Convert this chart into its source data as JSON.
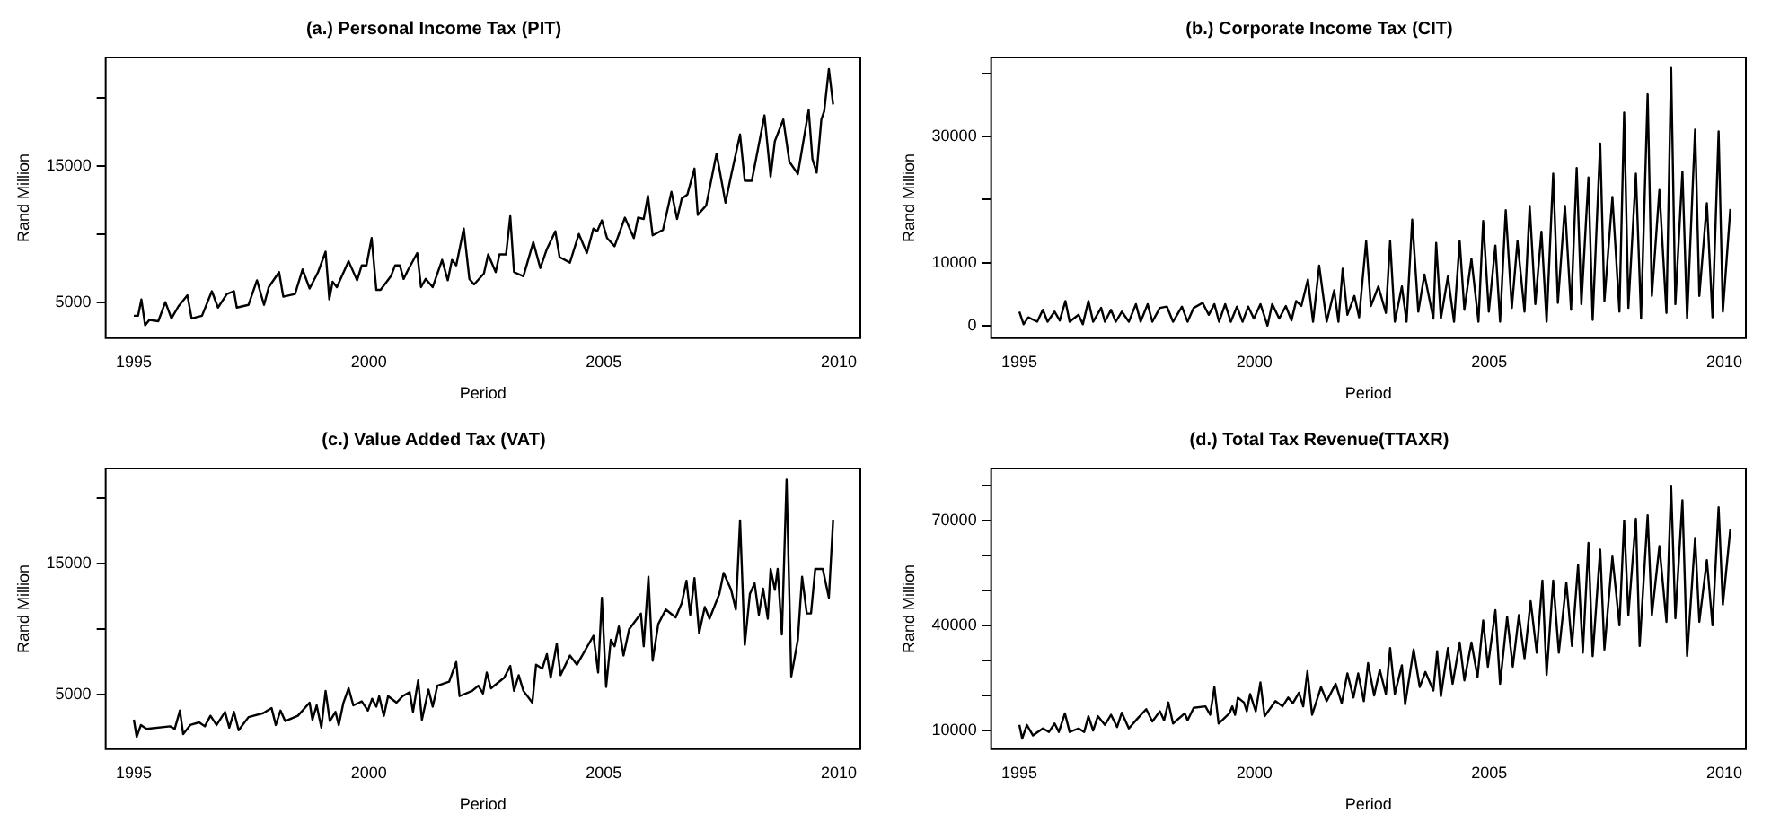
{
  "chart_data": [
    {
      "type": "line",
      "title": "(a.) Personal Income Tax (PIT)",
      "xlabel": "Period",
      "ylabel": "Rand Million",
      "color": "#000000",
      "marker": "none",
      "xlim": [
        1994.4,
        2010.46
      ],
      "xticks": [
        1995,
        2000,
        2005,
        2010
      ],
      "ylim": [
        2360,
        22950
      ],
      "yticks": [
        5000,
        {
          "value": 10000,
          "label": null
        },
        15000,
        {
          "value": 20000,
          "label": null
        }
      ],
      "x": [
        1995.0,
        1995.09,
        1995.16,
        1995.24,
        1995.33,
        1995.52,
        1995.67,
        1995.8,
        1995.95,
        1996.14,
        1996.23,
        1996.45,
        1996.66,
        1996.79,
        1996.98,
        1997.13,
        1997.19,
        1997.44,
        1997.62,
        1997.77,
        1997.87,
        1998.09,
        1998.18,
        1998.43,
        1998.59,
        1998.74,
        1998.92,
        1999.08,
        1999.16,
        1999.23,
        1999.32,
        1999.57,
        1999.75,
        1999.85,
        1999.95,
        2000.06,
        2000.16,
        2000.25,
        2000.47,
        2000.56,
        2000.66,
        2000.74,
        2000.84,
        2001.03,
        2001.11,
        2001.21,
        2001.36,
        2001.56,
        2001.68,
        2001.77,
        2001.86,
        2002.02,
        2002.14,
        2002.24,
        2002.45,
        2002.54,
        2002.7,
        2002.78,
        2002.92,
        2003.01,
        2003.09,
        2003.29,
        2003.5,
        2003.65,
        2003.79,
        2003.97,
        2004.06,
        2004.28,
        2004.47,
        2004.64,
        2004.78,
        2004.86,
        2004.96,
        2005.07,
        2005.23,
        2005.45,
        2005.64,
        2005.73,
        2005.85,
        2005.94,
        2006.04,
        2006.26,
        2006.44,
        2006.56,
        2006.66,
        2006.78,
        2006.93,
        2007.0,
        2007.18,
        2007.4,
        2007.59,
        2007.71,
        2007.9,
        2008.0,
        2008.15,
        2008.42,
        2008.55,
        2008.64,
        2008.82,
        2008.95,
        2009.13,
        2009.36,
        2009.44,
        2009.53,
        2009.63,
        2009.69,
        2009.79,
        2009.88
      ],
      "values": [
        4000,
        4000,
        5200,
        3300,
        3700,
        3600,
        5000,
        3800,
        4700,
        5500,
        3800,
        4000,
        5800,
        4600,
        5600,
        5800,
        4600,
        4800,
        6600,
        4800,
        6100,
        7200,
        5400,
        5600,
        7400,
        6000,
        7200,
        8700,
        5200,
        6500,
        6100,
        8000,
        6600,
        7700,
        7700,
        9700,
        5900,
        5900,
        6900,
        7700,
        7700,
        6700,
        7400,
        8600,
        6100,
        6700,
        6100,
        8100,
        6600,
        8100,
        7700,
        10400,
        6700,
        6300,
        7100,
        8500,
        7200,
        8500,
        8500,
        11300,
        7200,
        6900,
        9400,
        7500,
        8900,
        10200,
        8300,
        7900,
        10000,
        8600,
        10400,
        10200,
        11000,
        9700,
        9100,
        11200,
        9700,
        11200,
        11100,
        12800,
        9900,
        10300,
        13100,
        11100,
        12600,
        12900,
        14800,
        11400,
        12100,
        15900,
        12300,
        14300,
        17300,
        13900,
        13900,
        18700,
        14200,
        16800,
        18400,
        15300,
        14400,
        19100,
        15500,
        14500,
        18400,
        19000,
        22100,
        19500
      ]
    },
    {
      "type": "line",
      "title": "(b.) Corporate Income Tax (CIT)",
      "xlabel": "Period",
      "ylabel": "Rand Million",
      "color": "#000000",
      "marker": "none",
      "xlim": [
        1994.4,
        2010.46
      ],
      "xticks": [
        1995,
        2000,
        2005,
        2010
      ],
      "ylim": [
        -2000,
        42550
      ],
      "yticks": [
        0,
        10000,
        {
          "value": 20000,
          "label": null
        },
        30000,
        {
          "value": 40000,
          "label": null
        }
      ],
      "x": [
        1995.0,
        1995.09,
        1995.19,
        1995.38,
        1995.5,
        1995.6,
        1995.75,
        1995.86,
        1995.98,
        1996.07,
        1996.26,
        1996.35,
        1996.47,
        1996.57,
        1996.74,
        1996.82,
        1996.95,
        1997.05,
        1997.18,
        1997.33,
        1997.48,
        1997.58,
        1997.73,
        1997.83,
        1997.99,
        1998.14,
        1998.27,
        1998.46,
        1998.58,
        1998.71,
        1998.9,
        1999.03,
        1999.15,
        1999.25,
        1999.38,
        1999.5,
        1999.63,
        1999.75,
        1999.87,
        1999.99,
        2000.13,
        2000.28,
        2000.38,
        2000.53,
        2000.67,
        2000.79,
        2000.89,
        2001.0,
        2001.14,
        2001.25,
        2001.38,
        2001.54,
        2001.7,
        2001.79,
        2001.88,
        2001.98,
        2002.13,
        2002.23,
        2002.38,
        2002.48,
        2002.64,
        2002.8,
        2002.89,
        2002.99,
        2003.14,
        2003.24,
        2003.36,
        2003.49,
        2003.62,
        2003.81,
        2003.87,
        2003.97,
        2004.12,
        2004.25,
        2004.37,
        2004.47,
        2004.62,
        2004.77,
        2004.87,
        2004.99,
        2005.13,
        2005.23,
        2005.35,
        2005.48,
        2005.6,
        2005.75,
        2005.86,
        2005.98,
        2006.11,
        2006.22,
        2006.36,
        2006.46,
        2006.61,
        2006.74,
        2006.86,
        2006.96,
        2007.11,
        2007.2,
        2007.36,
        2007.45,
        2007.62,
        2007.77,
        2007.87,
        2007.96,
        2008.12,
        2008.23,
        2008.37,
        2008.46,
        2008.62,
        2008.77,
        2008.87,
        2008.96,
        2009.11,
        2009.21,
        2009.38,
        2009.47,
        2009.63,
        2009.75,
        2009.88,
        2009.97,
        2010.13
      ],
      "values": [
        2200,
        200,
        1300,
        600,
        2500,
        600,
        2200,
        800,
        3900,
        600,
        1700,
        200,
        3900,
        600,
        2800,
        600,
        2500,
        600,
        2200,
        600,
        3400,
        600,
        3400,
        600,
        2800,
        3000,
        600,
        3000,
        600,
        2800,
        3600,
        1700,
        3400,
        600,
        3400,
        600,
        3000,
        600,
        3000,
        1100,
        3400,
        0,
        3400,
        1100,
        3100,
        800,
        3900,
        3100,
        7300,
        600,
        9500,
        600,
        5600,
        600,
        9000,
        1700,
        4700,
        1300,
        13400,
        3100,
        6200,
        2000,
        13400,
        600,
        6200,
        600,
        16800,
        2200,
        8100,
        1100,
        13100,
        1100,
        7800,
        600,
        13400,
        2500,
        10600,
        600,
        16600,
        2200,
        12700,
        600,
        18300,
        2800,
        13400,
        2200,
        19000,
        3400,
        14900,
        600,
        24100,
        3600,
        19000,
        2500,
        25000,
        3400,
        23500,
        900,
        28900,
        3900,
        20400,
        2200,
        33800,
        2800,
        24100,
        1100,
        36700,
        4700,
        21500,
        2000,
        40900,
        3400,
        24400,
        1100,
        31100,
        4700,
        19400,
        1300,
        30800,
        2200,
        18500
      ]
    },
    {
      "type": "line",
      "title": "(c.) Value Added Tax (VAT)",
      "xlabel": "Period",
      "ylabel": "Rand Million",
      "color": "#000000",
      "marker": "none",
      "xlim": [
        1994.4,
        2010.46
      ],
      "xticks": [
        1995,
        2000,
        2005,
        2010
      ],
      "ylim": [
        860,
        22260
      ],
      "yticks": [
        5000,
        {
          "value": 10000,
          "label": null
        },
        15000,
        {
          "value": 20000,
          "label": null
        }
      ],
      "x": [
        1995.0,
        1995.06,
        1995.15,
        1995.27,
        1995.77,
        1995.87,
        1995.98,
        1996.05,
        1996.2,
        1996.39,
        1996.51,
        1996.63,
        1996.76,
        1996.94,
        1997.03,
        1997.13,
        1997.23,
        1997.44,
        1997.75,
        1997.93,
        1998.02,
        1998.12,
        1998.22,
        1998.49,
        1998.74,
        1998.8,
        1998.89,
        1998.99,
        1999.08,
        1999.17,
        1999.29,
        1999.36,
        1999.46,
        1999.57,
        1999.67,
        1999.85,
        1999.98,
        2000.07,
        2000.16,
        2000.22,
        2000.32,
        2000.41,
        2000.59,
        2000.72,
        2000.87,
        2000.94,
        2001.05,
        2001.13,
        2001.27,
        2001.36,
        2001.46,
        2001.71,
        2001.86,
        2001.93,
        2002.2,
        2002.33,
        2002.43,
        2002.51,
        2002.6,
        2002.88,
        2003.01,
        2003.09,
        2003.19,
        2003.29,
        2003.48,
        2003.56,
        2003.69,
        2003.79,
        2003.87,
        2004.0,
        2004.08,
        2004.28,
        2004.43,
        2004.78,
        2004.88,
        2004.96,
        2005.05,
        2005.15,
        2005.23,
        2005.32,
        2005.42,
        2005.54,
        2005.79,
        2005.85,
        2005.95,
        2006.04,
        2006.16,
        2006.32,
        2006.53,
        2006.66,
        2006.76,
        2006.84,
        2006.93,
        2007.03,
        2007.15,
        2007.25,
        2007.46,
        2007.55,
        2007.71,
        2007.81,
        2007.9,
        2008.0,
        2008.11,
        2008.21,
        2008.3,
        2008.39,
        2008.49,
        2008.55,
        2008.64,
        2008.7,
        2008.79,
        2008.89,
        2008.99,
        2009.13,
        2009.22,
        2009.32,
        2009.41,
        2009.5,
        2009.66,
        2009.79,
        2009.88
      ],
      "values": [
        3100,
        1800,
        2700,
        2400,
        2600,
        2400,
        3800,
        2000,
        2700,
        2900,
        2600,
        3400,
        2700,
        3700,
        2500,
        3700,
        2300,
        3300,
        3600,
        4000,
        2700,
        3800,
        3000,
        3400,
        4400,
        3100,
        4200,
        2500,
        5300,
        3000,
        3700,
        2700,
        4400,
        5500,
        4200,
        4500,
        3800,
        4700,
        4100,
        4900,
        3400,
        4900,
        4400,
        4900,
        5200,
        3700,
        6100,
        3100,
        5400,
        4100,
        5700,
        6000,
        7500,
        4900,
        5300,
        5700,
        5100,
        6700,
        5500,
        6300,
        7200,
        5300,
        6500,
        5300,
        4400,
        7300,
        7000,
        8100,
        6300,
        8900,
        6500,
        8000,
        7300,
        9500,
        6700,
        12400,
        5600,
        9200,
        8700,
        10200,
        8000,
        10000,
        11200,
        8700,
        14000,
        7600,
        10400,
        11500,
        10900,
        12000,
        13700,
        11100,
        13900,
        9700,
        11700,
        10800,
        12700,
        14300,
        13000,
        11500,
        18300,
        8800,
        12700,
        13500,
        11100,
        13100,
        10800,
        14600,
        13000,
        14600,
        9600,
        21400,
        6400,
        9200,
        14000,
        11200,
        11200,
        14600,
        14600,
        12400,
        18300
      ]
    },
    {
      "type": "line",
      "title": "(d.) Total Tax Revenue(TTAXR)",
      "xlabel": "Period",
      "ylabel": "Rand Million",
      "color": "#000000",
      "marker": "none",
      "xlim": [
        1994.4,
        2010.46
      ],
      "xticks": [
        1995,
        2000,
        2005,
        2010
      ],
      "ylim": [
        4700,
        84750
      ],
      "yticks": [
        10000,
        {
          "value": 20000,
          "label": null
        },
        {
          "value": 30000,
          "label": null
        },
        40000,
        {
          "value": 50000,
          "label": null
        },
        {
          "value": 60000,
          "label": null
        },
        70000,
        {
          "value": 80000,
          "label": null
        }
      ],
      "x": [
        1995.0,
        1995.06,
        1995.16,
        1995.29,
        1995.5,
        1995.63,
        1995.75,
        1995.84,
        1995.97,
        1996.07,
        1996.26,
        1996.38,
        1996.47,
        1996.57,
        1996.67,
        1996.82,
        1996.95,
        1997.08,
        1997.18,
        1997.33,
        1997.52,
        1997.7,
        1997.83,
        1997.99,
        1998.08,
        1998.17,
        1998.27,
        1998.52,
        1998.58,
        1998.71,
        1998.96,
        1999.06,
        1999.15,
        1999.24,
        1999.47,
        1999.53,
        1999.59,
        1999.65,
        1999.78,
        1999.84,
        1999.91,
        2000.03,
        2000.13,
        2000.22,
        2000.45,
        2000.6,
        2000.72,
        2000.82,
        2000.95,
        2001.04,
        2001.13,
        2001.23,
        2001.42,
        2001.54,
        2001.73,
        2001.86,
        2001.98,
        2002.11,
        2002.21,
        2002.33,
        2002.42,
        2002.55,
        2002.67,
        2002.8,
        2002.89,
        2002.99,
        2003.14,
        2003.21,
        2003.39,
        2003.52,
        2003.64,
        2003.81,
        2003.89,
        2003.97,
        2004.12,
        2004.22,
        2004.37,
        2004.47,
        2004.62,
        2004.75,
        2004.87,
        2004.97,
        2005.13,
        2005.23,
        2005.38,
        2005.5,
        2005.63,
        2005.75,
        2005.88,
        2006.01,
        2006.13,
        2006.22,
        2006.36,
        2006.48,
        2006.64,
        2006.76,
        2006.89,
        2006.99,
        2007.11,
        2007.2,
        2007.36,
        2007.45,
        2007.62,
        2007.77,
        2007.87,
        2007.96,
        2008.12,
        2008.2,
        2008.37,
        2008.46,
        2008.62,
        2008.77,
        2008.87,
        2008.96,
        2009.11,
        2009.21,
        2009.38,
        2009.47,
        2009.63,
        2009.75,
        2009.88,
        2009.97,
        2010.13
      ],
      "values": [
        11600,
        7700,
        11600,
        8600,
        10600,
        9600,
        12000,
        9600,
        14900,
        9600,
        10600,
        9600,
        14100,
        10000,
        14100,
        11600,
        14500,
        11000,
        15100,
        10600,
        13500,
        16100,
        12600,
        15500,
        12900,
        18000,
        12000,
        14900,
        12900,
        16500,
        16900,
        14500,
        22400,
        12000,
        14900,
        16900,
        14500,
        19400,
        18000,
        15500,
        20400,
        15500,
        23700,
        14100,
        18400,
        16900,
        19400,
        17800,
        20800,
        16900,
        26900,
        14500,
        22400,
        18400,
        23300,
        17800,
        26300,
        19400,
        26300,
        18400,
        29200,
        20000,
        27300,
        20400,
        33500,
        20400,
        28600,
        17500,
        33100,
        22400,
        26700,
        21400,
        32600,
        19800,
        33500,
        23300,
        35100,
        24300,
        35100,
        25300,
        41400,
        28200,
        44300,
        23300,
        42400,
        28200,
        42900,
        30600,
        46900,
        32200,
        52800,
        25900,
        52800,
        32200,
        52200,
        34100,
        57300,
        32200,
        63500,
        31200,
        61600,
        33100,
        59600,
        40000,
        69800,
        42900,
        70400,
        34100,
        71400,
        42900,
        62600,
        41000,
        79600,
        42000,
        75700,
        31200,
        64900,
        41000,
        58600,
        40000,
        73700,
        45900,
        67500
      ]
    }
  ]
}
